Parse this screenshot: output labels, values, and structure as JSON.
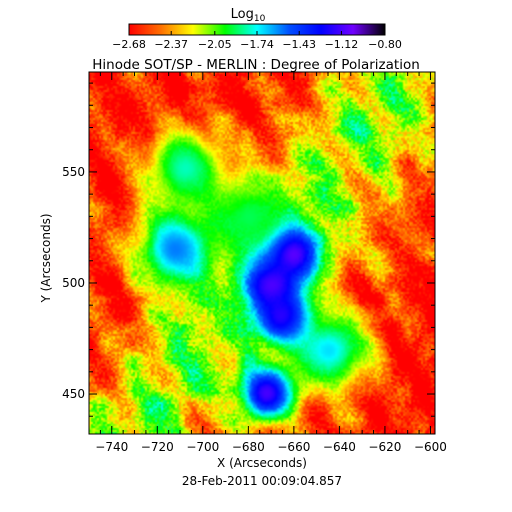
{
  "chart_data": {
    "type": "heatmap",
    "title": "Hinode SOT/SP - MERLIN : Degree of Polarization",
    "xlabel": "X (Arcseconds)",
    "ylabel": "Y (Arcseconds)",
    "timestamp": "28-Feb-2011 00:09:04.857",
    "xlim": [
      -750,
      -598
    ],
    "ylim": [
      432,
      595
    ],
    "xticks": [
      -740,
      -720,
      -700,
      -680,
      -660,
      -640,
      -620,
      -600
    ],
    "xtick_labels": [
      "−740",
      "−720",
      "−700",
      "−680",
      "−660",
      "−640",
      "−620",
      "−600"
    ],
    "yticks": [
      450,
      500,
      550
    ],
    "ytick_labels": [
      "450",
      "500",
      "550"
    ],
    "colorbar": {
      "title": "Log",
      "title_subscript": "10",
      "range": [
        -2.68,
        -0.8
      ],
      "ticks": [
        -2.68,
        -2.37,
        -2.05,
        -1.74,
        -1.43,
        -1.12,
        -0.8
      ],
      "tick_labels": [
        "−2.68",
        "−2.37",
        "−2.05",
        "−1.74",
        "−1.43",
        "−1.12",
        "−0.80"
      ],
      "colormap": [
        "#ff0000",
        "#ff7000",
        "#ffff00",
        "#00ff00",
        "#00ffff",
        "#0050ff",
        "#0000ff",
        "#7000ff",
        "#000000"
      ]
    },
    "features": [
      {
        "x": -662,
        "y": 514,
        "value": -0.9
      },
      {
        "x": -670,
        "y": 500,
        "value": -1.05
      },
      {
        "x": -665,
        "y": 485,
        "value": -1.1
      },
      {
        "x": -672,
        "y": 451,
        "value": -1.1
      },
      {
        "x": -712,
        "y": 516,
        "value": -1.55
      },
      {
        "x": -708,
        "y": 552,
        "value": -1.8
      },
      {
        "x": -645,
        "y": 470,
        "value": -1.7
      },
      {
        "x": -680,
        "y": 530,
        "value": -1.9
      }
    ]
  }
}
